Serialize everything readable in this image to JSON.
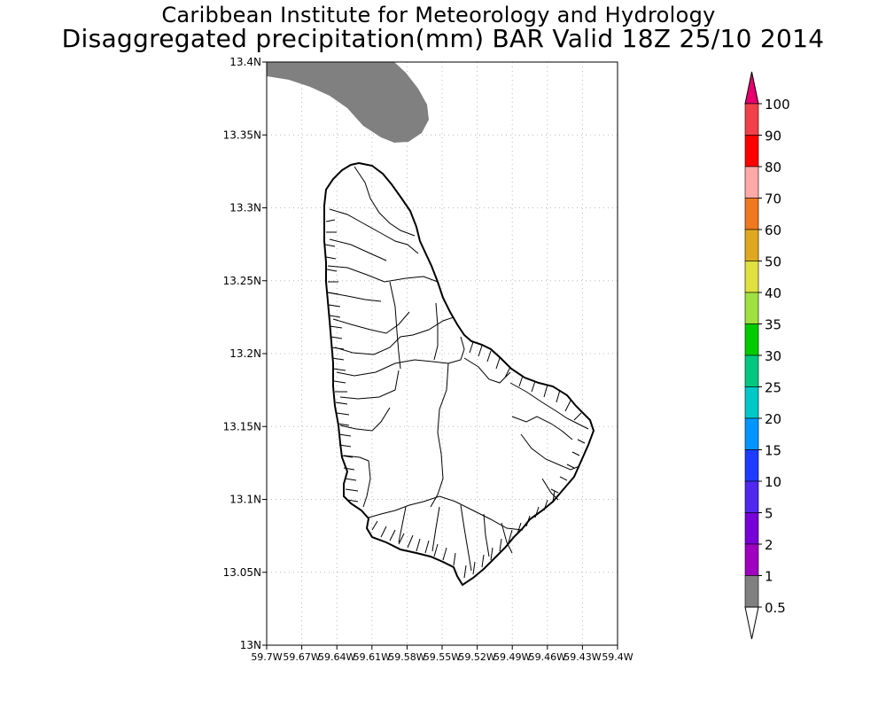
{
  "header": {
    "institution": "Caribbean Institute for Meteorology and Hydrology",
    "title": "Disaggregated precipitation(mm) BAR Valid 18Z 25/10 2014"
  },
  "map": {
    "lat_ticks": [
      "13.4N",
      "13.35N",
      "13.3N",
      "13.25N",
      "13.2N",
      "13.15N",
      "13.1N",
      "13.05N",
      "13N"
    ],
    "lon_ticks": [
      "59.7W",
      "59.67W",
      "59.64W",
      "59.61W",
      "59.58W",
      "59.55W",
      "59.52W",
      "59.49W",
      "59.46W",
      "59.43W",
      "59.4W"
    ],
    "precip_area_color": "#808080",
    "land_outline_color": "#000000"
  },
  "colorbar": {
    "labels": [
      "100",
      "90",
      "80",
      "70",
      "60",
      "50",
      "40",
      "35",
      "30",
      "25",
      "20",
      "15",
      "10",
      "5",
      "2",
      "1",
      "0.5"
    ],
    "colors": [
      "#e8006e",
      "#f2404a",
      "#ff0000",
      "#ffa8a8",
      "#f07820",
      "#e0a820",
      "#e0e040",
      "#a0e040",
      "#00cc00",
      "#00c880",
      "#00c8c8",
      "#0096ff",
      "#1e3cff",
      "#5028f0",
      "#7800d8",
      "#a000c0",
      "#808080",
      "#ffffff"
    ]
  }
}
